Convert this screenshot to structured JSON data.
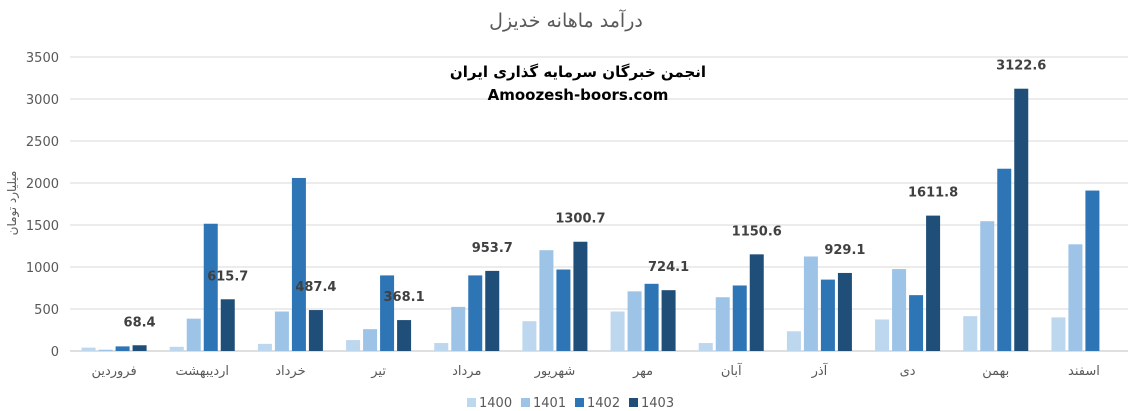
{
  "chart_data": {
    "type": "bar",
    "title": "درآمد ماهانه خدیزل",
    "ylabel": "میلیارد تومان",
    "xlabel": "",
    "ylim": [
      0,
      3500
    ],
    "yticks": [
      0,
      500,
      1000,
      1500,
      2000,
      2500,
      3000,
      3500
    ],
    "grid": true,
    "legend_position": "bottom",
    "categories": [
      "فروردین",
      "اردیبهشت",
      "خرداد",
      "تیر",
      "مرداد",
      "شهریور",
      "مهر",
      "آبان",
      "آذر",
      "دی",
      "بهمن",
      "اسفند"
    ],
    "series": [
      {
        "name": "1400",
        "color": "#bdd7ee",
        "values": [
          40,
          50,
          85,
          130,
          95,
          355,
          470,
          95,
          235,
          375,
          415,
          400
        ]
      },
      {
        "name": "1401",
        "color": "#9dc3e6",
        "values": [
          15,
          385,
          470,
          260,
          525,
          1200,
          710,
          640,
          1125,
          975,
          1545,
          1270
        ]
      },
      {
        "name": "1402",
        "color": "#2e75b6",
        "values": [
          55,
          1515,
          2060,
          900,
          900,
          970,
          800,
          780,
          850,
          665,
          2170,
          1910
        ]
      },
      {
        "name": "1403",
        "color": "#1f4e79",
        "values": [
          68.4,
          615.7,
          487.4,
          368.1,
          953.7,
          1300.7,
          724.1,
          1150.6,
          929.1,
          1611.8,
          3122.6,
          null
        ]
      }
    ],
    "data_labels": {
      "series": "1403",
      "texts": [
        "68.4",
        "615.7",
        "487.4",
        "368.1",
        "953.7",
        "1300.7",
        "724.1",
        "1150.6",
        "929.1",
        "1611.8",
        "3122.6",
        ""
      ]
    },
    "annotations": [
      "انجمن خبرگان سرمایه گذاری ایران",
      "Amoozesh-boors.com"
    ]
  }
}
